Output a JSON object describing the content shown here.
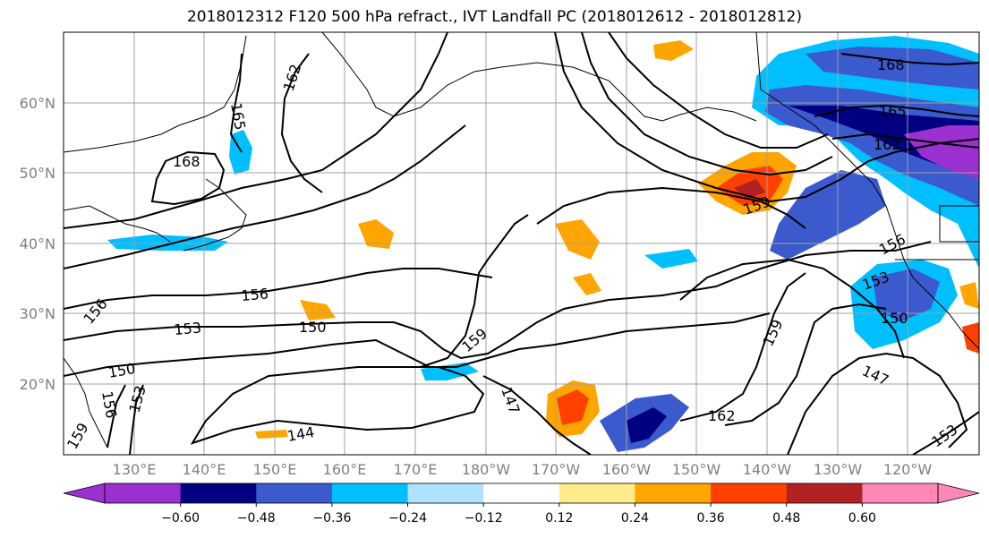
{
  "title": "2018012312 F120 500 hPa refract., IVT Landfall PC (2018012612 - 2018012812)",
  "map": {
    "lat_labels": [
      "60°N",
      "50°N",
      "40°N",
      "30°N",
      "20°N"
    ],
    "lon_labels": [
      "130°E",
      "140°E",
      "150°E",
      "160°E",
      "170°E",
      "180°W",
      "170°W",
      "160°W",
      "150°W",
      "140°W",
      "130°W",
      "120°W"
    ],
    "contour_labels": [
      "165",
      "168",
      "162",
      "168",
      "165",
      "162",
      "159",
      "156",
      "153",
      "156",
      "150",
      "156",
      "153",
      "150",
      "159",
      "150",
      "153",
      "156",
      "159",
      "147",
      "162",
      "144",
      "147",
      "153",
      "159"
    ],
    "colors": {
      "coast": "#000000",
      "contour": "#000000",
      "grid": "#a0a0a0"
    }
  },
  "colorbar": {
    "colors": [
      "#9b30d0",
      "#000080",
      "#3a5acd",
      "#00bfff",
      "#b0e2ff",
      "#ffffff",
      "#ffeb8a",
      "#ffa500",
      "#ff4000",
      "#b22222",
      "#ff88b8"
    ],
    "ticks": [
      "−0.60",
      "−0.48",
      "−0.36",
      "−0.24",
      "−0.12",
      "0.12",
      "0.24",
      "0.36",
      "0.48",
      "0.60"
    ]
  }
}
